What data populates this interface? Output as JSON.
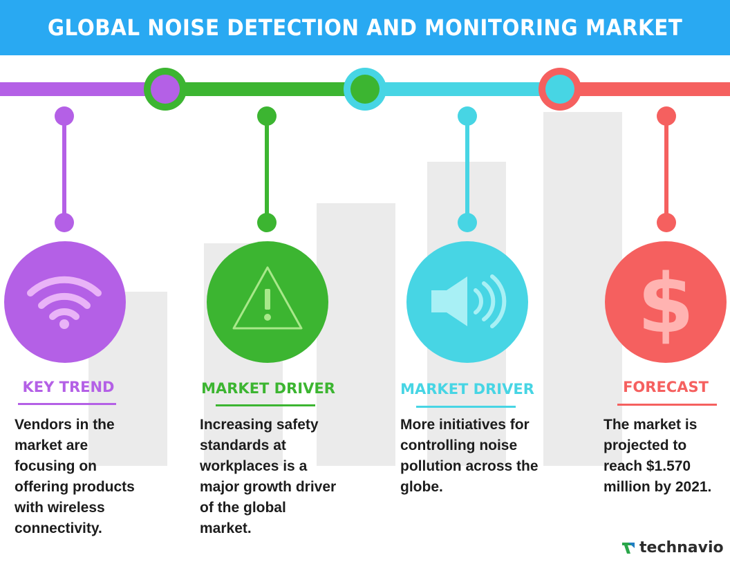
{
  "header": {
    "title": "GLOBAL NOISE DETECTION AND MONITORING MARKET"
  },
  "colors": {
    "header_bg": "#29a9f2",
    "purple": "#b460e6",
    "green": "#3cb531",
    "cyan": "#47d5e4",
    "red": "#f5605f",
    "bar_grey": "#ebebeb"
  },
  "sections": [
    {
      "heading": "KEY TREND",
      "color": "#b460e6",
      "icon": "wifi-icon",
      "text": [
        "Vendors in the",
        "market are",
        "focusing on",
        "offering products",
        "with wireless",
        "connectivity."
      ]
    },
    {
      "heading": "MARKET DRIVER",
      "color": "#3cb531",
      "icon": "warning-icon",
      "text": [
        "Increasing safety",
        "standards at",
        "workplaces is a",
        "major growth driver",
        "of the global",
        "market."
      ]
    },
    {
      "heading": "MARKET DRIVER",
      "color": "#47d5e4",
      "icon": "speaker-icon",
      "text": [
        "More initiatives for",
        "controlling noise",
        "pollution across the",
        "globe."
      ]
    },
    {
      "heading": "FORECAST",
      "color": "#f5605f",
      "icon": "dollar-icon",
      "text": [
        "The market is",
        "projected to",
        "reach $1.570",
        "million by 2021."
      ]
    }
  ],
  "logo": {
    "text": "technavio",
    "icon": "technavio-arrow-icon"
  }
}
